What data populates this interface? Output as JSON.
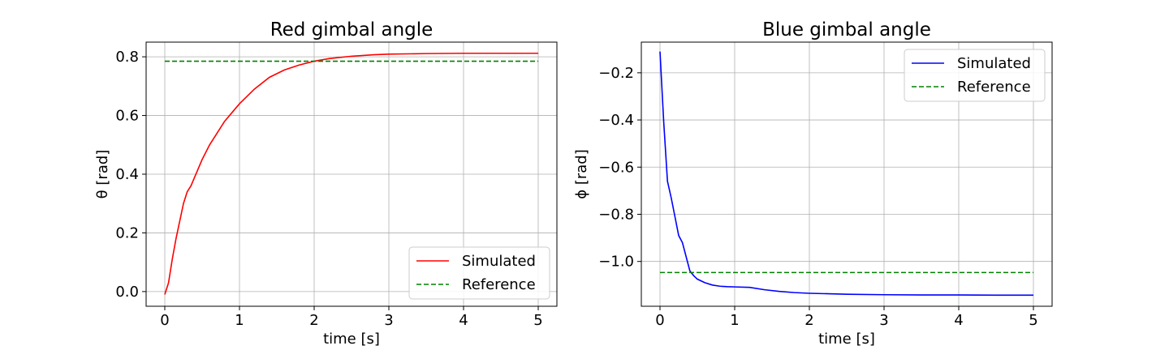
{
  "chart_data": [
    {
      "type": "line",
      "title": "Red gimbal angle",
      "xlabel": "time [s]",
      "ylabel": "θ [rad]",
      "xlim": [
        -0.25,
        5.25
      ],
      "ylim": [
        -0.05,
        0.85
      ],
      "xticks": [
        0,
        1,
        2,
        3,
        4,
        5
      ],
      "xtick_labels": [
        "0",
        "1",
        "2",
        "3",
        "4",
        "5"
      ],
      "yticks": [
        0.0,
        0.2,
        0.4,
        0.6,
        0.8
      ],
      "ytick_labels": [
        "0.0",
        "0.2",
        "0.4",
        "0.6",
        "0.8"
      ],
      "grid": true,
      "legend_position": "bottom-right",
      "series": [
        {
          "name": "Simulated",
          "color": "#ff0000",
          "dash": "solid",
          "x": [
            0,
            0.05,
            0.1,
            0.15,
            0.2,
            0.25,
            0.3,
            0.35,
            0.4,
            0.5,
            0.6,
            0.7,
            0.8,
            0.9,
            1.0,
            1.2,
            1.4,
            1.6,
            1.8,
            2.0,
            2.2,
            2.5,
            2.8,
            3.0,
            3.5,
            4.0,
            4.5,
            5.0
          ],
          "y": [
            -0.01,
            0.03,
            0.11,
            0.18,
            0.24,
            0.3,
            0.34,
            0.36,
            0.39,
            0.45,
            0.5,
            0.54,
            0.58,
            0.61,
            0.64,
            0.69,
            0.73,
            0.755,
            0.772,
            0.785,
            0.794,
            0.802,
            0.807,
            0.809,
            0.811,
            0.812,
            0.812,
            0.812
          ]
        },
        {
          "name": "Reference",
          "color": "#008000",
          "dash": "dashed",
          "x": [
            0,
            5
          ],
          "y": [
            0.785,
            0.785
          ]
        }
      ]
    },
    {
      "type": "line",
      "title": "Blue gimbal angle",
      "xlabel": "time [s]",
      "ylabel": "ϕ [rad]",
      "xlim": [
        -0.25,
        5.25
      ],
      "ylim": [
        -1.19,
        -0.07
      ],
      "xticks": [
        0,
        1,
        2,
        3,
        4,
        5
      ],
      "xtick_labels": [
        "0",
        "1",
        "2",
        "3",
        "4",
        "5"
      ],
      "yticks": [
        -0.2,
        -0.4,
        -0.6,
        -0.8,
        -1.0
      ],
      "ytick_labels": [
        "−0.2",
        "−0.4",
        "−0.6",
        "−0.8",
        "−1.0"
      ],
      "grid": true,
      "legend_position": "top-right",
      "series": [
        {
          "name": "Simulated",
          "color": "#0000ff",
          "dash": "solid",
          "x": [
            0,
            0.05,
            0.1,
            0.15,
            0.2,
            0.25,
            0.3,
            0.35,
            0.4,
            0.45,
            0.5,
            0.6,
            0.7,
            0.8,
            0.9,
            1.0,
            1.2,
            1.4,
            1.6,
            1.8,
            2.0,
            2.5,
            3.0,
            3.5,
            4.0,
            4.5,
            5.0
          ],
          "y": [
            -0.11,
            -0.41,
            -0.66,
            -0.73,
            -0.81,
            -0.89,
            -0.92,
            -0.98,
            -1.04,
            -1.06,
            -1.075,
            -1.09,
            -1.1,
            -1.105,
            -1.107,
            -1.108,
            -1.11,
            -1.12,
            -1.127,
            -1.132,
            -1.135,
            -1.139,
            -1.141,
            -1.142,
            -1.142,
            -1.143,
            -1.143
          ]
        },
        {
          "name": "Reference",
          "color": "#008000",
          "dash": "dashed",
          "x": [
            0,
            5
          ],
          "y": [
            -1.047,
            -1.047
          ]
        }
      ]
    }
  ]
}
